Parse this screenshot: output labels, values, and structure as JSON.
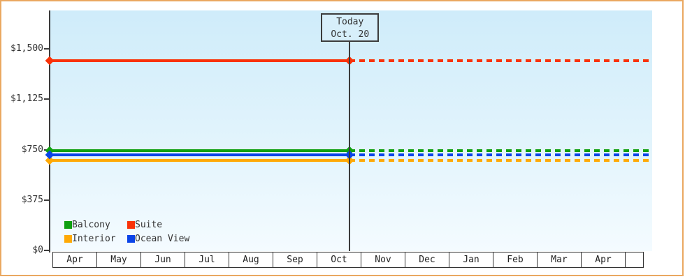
{
  "chart_data": {
    "type": "line",
    "title": "",
    "description": "Cabin price by category over time; flat price lines, solid history before today, dotted forecast after today",
    "x_axis": {
      "months": [
        "Apr",
        "May",
        "Jun",
        "Jul",
        "Aug",
        "Sep",
        "Oct",
        "Nov",
        "Dec",
        "Jan",
        "Feb",
        "Mar",
        "Apr"
      ]
    },
    "y_axis": {
      "tick_labels": [
        "$1,500",
        "$1,125",
        "$750",
        "$375",
        "$0"
      ],
      "tick_values": [
        1500,
        1125,
        750,
        375,
        0
      ],
      "range": [
        0,
        1500
      ]
    },
    "series": [
      {
        "name": "Balcony",
        "color": "#10a010",
        "price": 740
      },
      {
        "name": "Suite",
        "color": "#f93208",
        "price": 1410
      },
      {
        "name": "Interior",
        "color": "#ffa905",
        "price": 670
      },
      {
        "name": "Ocean View",
        "color": "#0a44e8",
        "price": 710
      }
    ],
    "today": {
      "line1": "Today",
      "line2": "Oct. 20",
      "month_index": 6,
      "day_fraction": 0.645
    },
    "grid": false,
    "legend_position": "bottom-left inside plot"
  },
  "colors": {
    "frame_border": "#eaa861",
    "plot_bg_top": "#cfecfa",
    "plot_bg_bottom": "#f4fbff",
    "axis": "#3c3c3c",
    "text": "#333333",
    "month_cell_bg": "#ffffff"
  }
}
